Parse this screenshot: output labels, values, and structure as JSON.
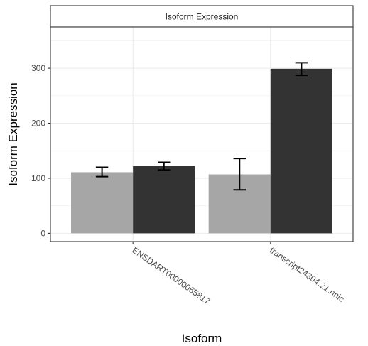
{
  "chart_data": {
    "type": "bar",
    "strip_title": "Isoform Expression",
    "xlabel": "Isoform",
    "ylabel": "Isoform Expression",
    "ylim": [
      -15,
      375
    ],
    "yticks": [
      0,
      100,
      200,
      300
    ],
    "grid": true,
    "legend": "none",
    "categories": [
      "ENSDART00000065817",
      "transcript24304.21.nnic"
    ],
    "series": [
      {
        "color": "#a6a6a6",
        "values": [
          111,
          107
        ],
        "error_low": [
          103,
          79
        ],
        "error_high": [
          120,
          136
        ]
      },
      {
        "color": "#333333",
        "values": [
          122,
          299
        ],
        "error_low": [
          115,
          287
        ],
        "error_high": [
          129,
          310
        ]
      }
    ]
  }
}
